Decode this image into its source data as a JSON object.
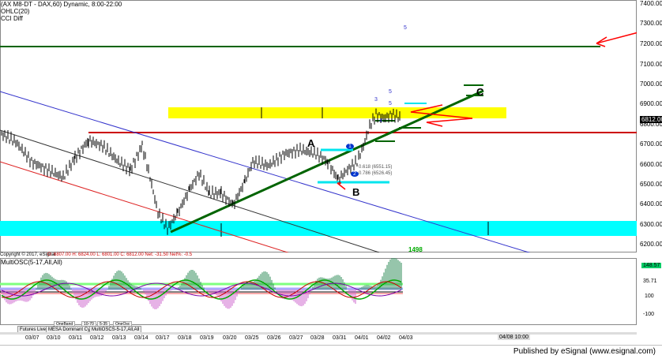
{
  "header": {
    "line1": "(AX M8-DT - DAX,60) Dynamic, 8:00-22:00",
    "line2": "OHLC(20)",
    "line3": "CCI Diff"
  },
  "price_axis": [
    "7400.00",
    "7300.00",
    "7200.00",
    "7100.00",
    "7000.00",
    "6900.00",
    "6800.00",
    "6700.00",
    "6600.00",
    "6500.00",
    "6400.00",
    "6300.00",
    "6200.00"
  ],
  "last_price": "6812.00",
  "osc_axis": {
    "v1": "148.57",
    "v2": "35.71",
    "v3": "100",
    "v4": "-100"
  },
  "osc_title": "MultiOSC(5-17,All,All)",
  "info_bar": {
    "copyright": "Copyright © 2017, eSignal",
    "ohlc": "O: 6807.00  H: 6824.00  L: 6801.00  C: 6812.00  Net: -31.50  Net%: -0.5"
  },
  "label_1498": "1498",
  "labels": {
    "A": "A",
    "B": "B",
    "C": "C",
    "fib1": "0.618 (6551.15)",
    "fib2": "0.786 (6526.45)",
    "w1": "1",
    "w2": "2",
    "w3": "3",
    "w4": "4",
    "w5": "5",
    "w5top": "5",
    "circle5": "5"
  },
  "x_dates": [
    "03/07",
    "03/10",
    "03/11",
    "03/12",
    "03/13",
    "03/14",
    "03/17",
    "03/18",
    "03/19",
    "03/20",
    "03/25",
    "03/26",
    "03/27",
    "03/28",
    "03/31",
    "04/01",
    "04/02",
    "04/03"
  ],
  "cursor_date": "04/08 10:00",
  "tabs": [
    "Futures Live",
    "MESA Dominant Cycle(i)",
    "MultiOSCS-5-17,All,All"
  ],
  "mini_buttons": [
    "OneBand",
    "10-70",
    "5-35",
    "OneOsc"
  ],
  "footer": "Published by eSignal (www.esignal.com)",
  "colors": {
    "yellow_zone": "#ffff00",
    "cyan_zone": "#00ffff",
    "green_trend": "#006400",
    "red_line": "#ff0000",
    "blue_channel": "#0000ff"
  }
}
